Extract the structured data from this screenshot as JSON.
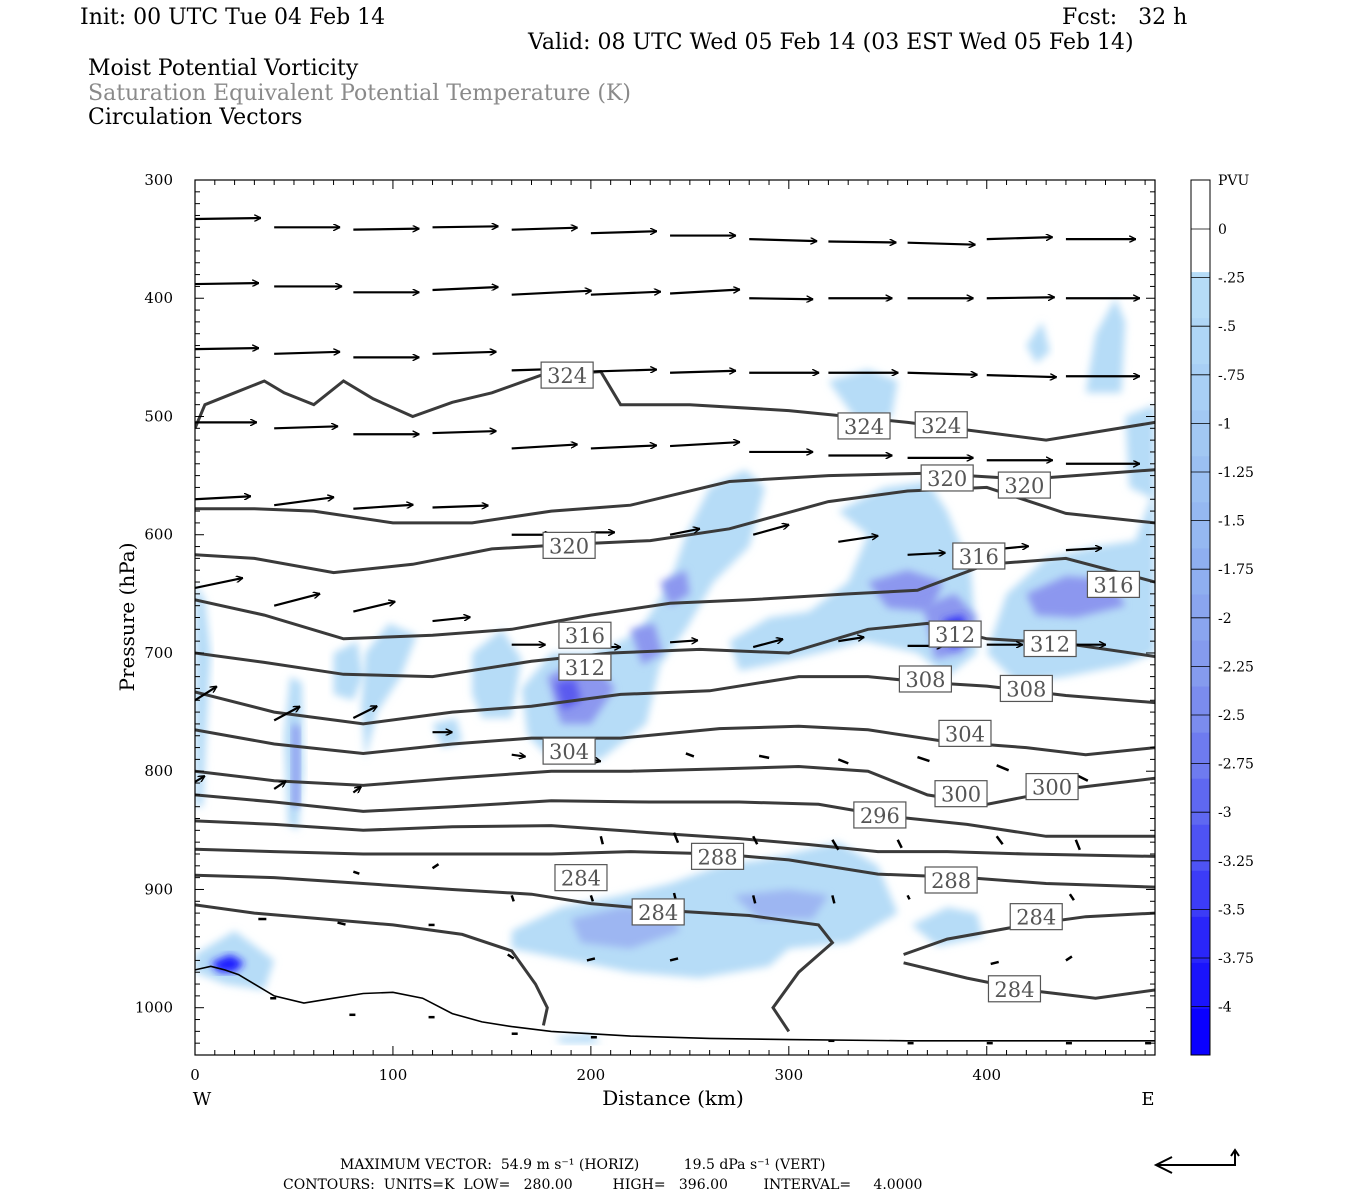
{
  "header": {
    "init": "Init: 00 UTC Tue 04 Feb 14",
    "fcst": "Fcst:   32 h",
    "valid": "Valid: 08 UTC Wed 05 Feb 14 (03 EST Wed 05 Feb 14)",
    "fields": [
      "Moist Potential Vorticity",
      "Saturation Equivalent Potential Temperature (K)",
      "Circulation Vectors"
    ]
  },
  "footer": {
    "max_vector": "MAXIMUM VECTOR:  54.9 m s⁻¹ (HORIZ)          19.5 dPa s⁻¹ (VERT)",
    "contours": "CONTOURS:  UNITS=K  LOW=   280.00         HIGH=   396.00        INTERVAL=     4.0000"
  },
  "colors": {
    "contour": "#3a3a3a",
    "fill_light": "#b6dcf7",
    "fill_mid": "#8c97ef",
    "fill_dark": "#1a1aff"
  },
  "chart_data": {
    "type": "heatmap",
    "xlabel": "Distance (km)",
    "ylabel": "Pressure (hPa)",
    "x_ticks": [
      0,
      100,
      200,
      300,
      400
    ],
    "y_ticks": [
      300,
      400,
      500,
      600,
      700,
      800,
      900,
      1000
    ],
    "xlim": [
      0,
      485
    ],
    "ylim": [
      300,
      1040
    ],
    "x_end_labels": {
      "left": "W",
      "right": "E"
    },
    "colorbar": {
      "unit": "PVU",
      "labels": [
        "0",
        "-.25",
        "-.5",
        "-.75",
        "-1",
        "-1.25",
        "-1.5",
        "-1.75",
        "-2",
        "-2.25",
        "-2.5",
        "-2.75",
        "-3",
        "-3.25",
        "-3.5",
        "-3.75",
        "-4"
      ],
      "colors": [
        "#ffffff",
        "#ffffff",
        "#b6dcf7",
        "#afd6f6",
        "#a8cff5",
        "#a2c8f3",
        "#9bc0f2",
        "#95b8f1",
        "#8faff0",
        "#8aa5ef",
        "#859bee",
        "#7b8cee",
        "#6e7bef",
        "#5f68f1",
        "#4e53f4",
        "#3c3cf7",
        "#2a26fa",
        "#1a14fc",
        "#0a00ff"
      ]
    },
    "contour_labels": [
      {
        "text": "324",
        "x": 188,
        "p": 465
      },
      {
        "text": "324",
        "x": 338,
        "p": 508
      },
      {
        "text": "324",
        "x": 377,
        "p": 507
      },
      {
        "text": "320",
        "x": 380,
        "p": 552
      },
      {
        "text": "320",
        "x": 419,
        "p": 558
      },
      {
        "text": "320",
        "x": 189,
        "p": 609
      },
      {
        "text": "316",
        "x": 396,
        "p": 618
      },
      {
        "text": "316",
        "x": 464,
        "p": 642
      },
      {
        "text": "316",
        "x": 197,
        "p": 685
      },
      {
        "text": "312",
        "x": 197,
        "p": 712
      },
      {
        "text": "312",
        "x": 384,
        "p": 684
      },
      {
        "text": "312",
        "x": 432,
        "p": 692
      },
      {
        "text": "308",
        "x": 369,
        "p": 722
      },
      {
        "text": "308",
        "x": 420,
        "p": 730
      },
      {
        "text": "304",
        "x": 189,
        "p": 783
      },
      {
        "text": "304",
        "x": 389,
        "p": 768
      },
      {
        "text": "300",
        "x": 387,
        "p": 819
      },
      {
        "text": "300",
        "x": 433,
        "p": 813
      },
      {
        "text": "296",
        "x": 346,
        "p": 837
      },
      {
        "text": "288",
        "x": 264,
        "p": 872
      },
      {
        "text": "288",
        "x": 382,
        "p": 892
      },
      {
        "text": "284",
        "x": 195,
        "p": 890
      },
      {
        "text": "284",
        "x": 234,
        "p": 919
      },
      {
        "text": "284",
        "x": 425,
        "p": 923
      },
      {
        "text": "284",
        "x": 414,
        "p": 984
      }
    ],
    "max_vector": {
      "horiz": 54.9,
      "horiz_unit": "m s-1",
      "vert": 19.5,
      "vert_unit": "dPa s-1"
    },
    "contour_low": 280.0,
    "contour_high": 396.0,
    "contour_interval": 4.0
  }
}
